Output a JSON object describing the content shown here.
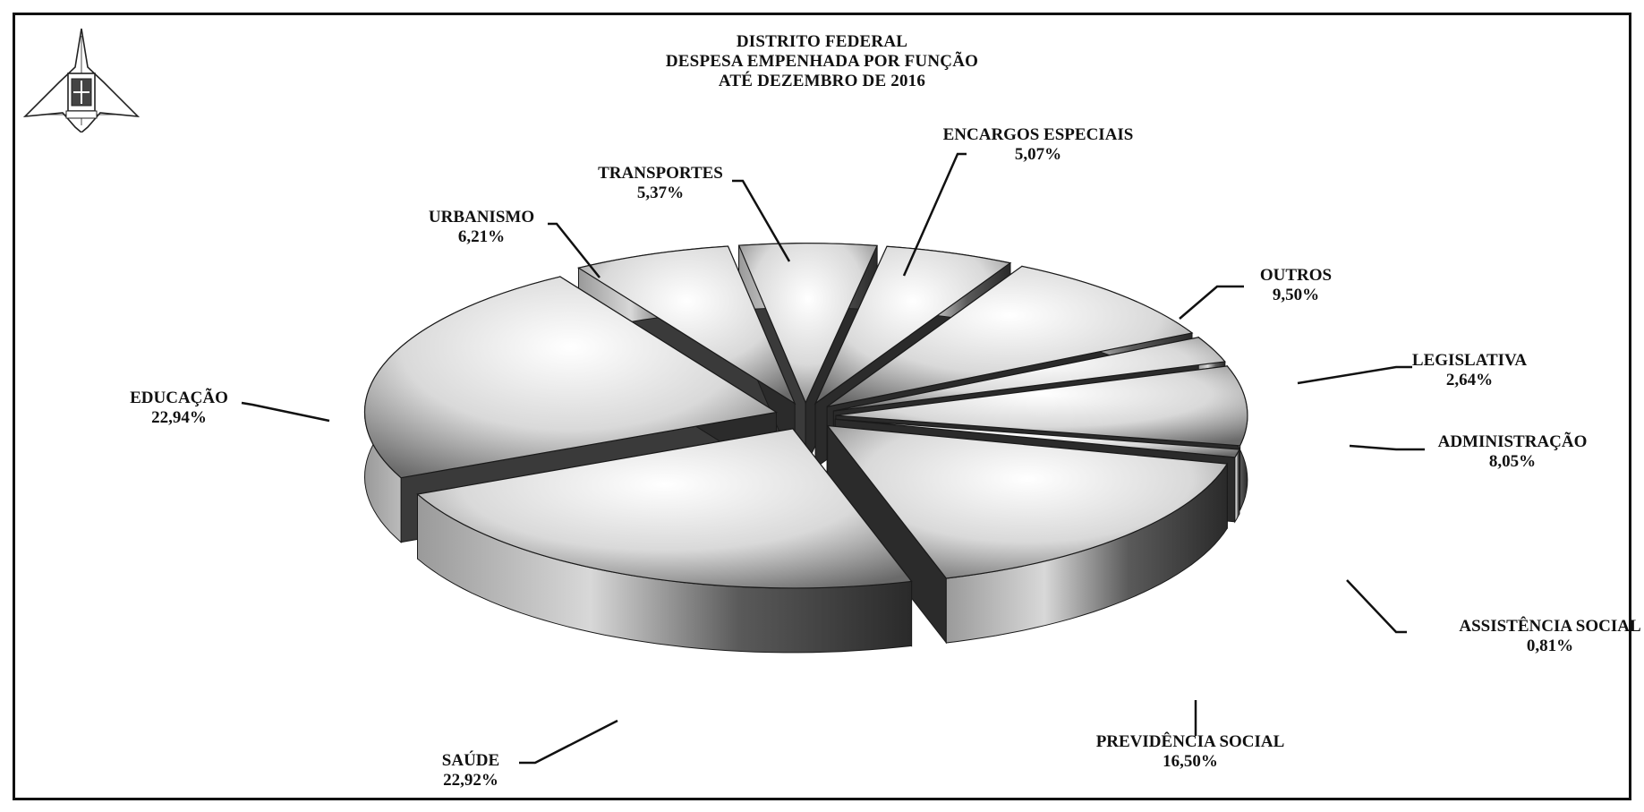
{
  "chart_data": {
    "type": "pie",
    "title_lines": [
      "DISTRITO FEDERAL",
      "DESPESA EMPENHADA POR FUNÇÃO",
      "ATÉ  DEZEMBRO DE  2016"
    ],
    "slices": [
      {
        "label": "ENCARGOS ESPECIAIS",
        "value": 5.07,
        "value_label": "5,07%"
      },
      {
        "label": "OUTROS",
        "value": 9.5,
        "value_label": "9,50%"
      },
      {
        "label": "LEGISLATIVA",
        "value": 2.64,
        "value_label": "2,64%"
      },
      {
        "label": "ADMINISTRAÇÃO",
        "value": 8.05,
        "value_label": "8,05%"
      },
      {
        "label": "ASSISTÊNCIA SOCIAL",
        "value": 0.81,
        "value_label": "0,81%"
      },
      {
        "label": "PREVIDÊNCIA SOCIAL",
        "value": 16.5,
        "value_label": "16,50%"
      },
      {
        "label": "SAÚDE",
        "value": 22.92,
        "value_label": "22,92%"
      },
      {
        "label": "EDUCAÇÃO",
        "value": 22.94,
        "value_label": "22,94%"
      },
      {
        "label": "URBANISMO",
        "value": 6.21,
        "value_label": "6,21%"
      },
      {
        "label": "TRANSPORTES",
        "value": 5.37,
        "value_label": "5,37%"
      }
    ],
    "style": "3d-exploded-grayscale"
  },
  "logo": {
    "name": "brasilia-coat-of-arms-icon"
  }
}
